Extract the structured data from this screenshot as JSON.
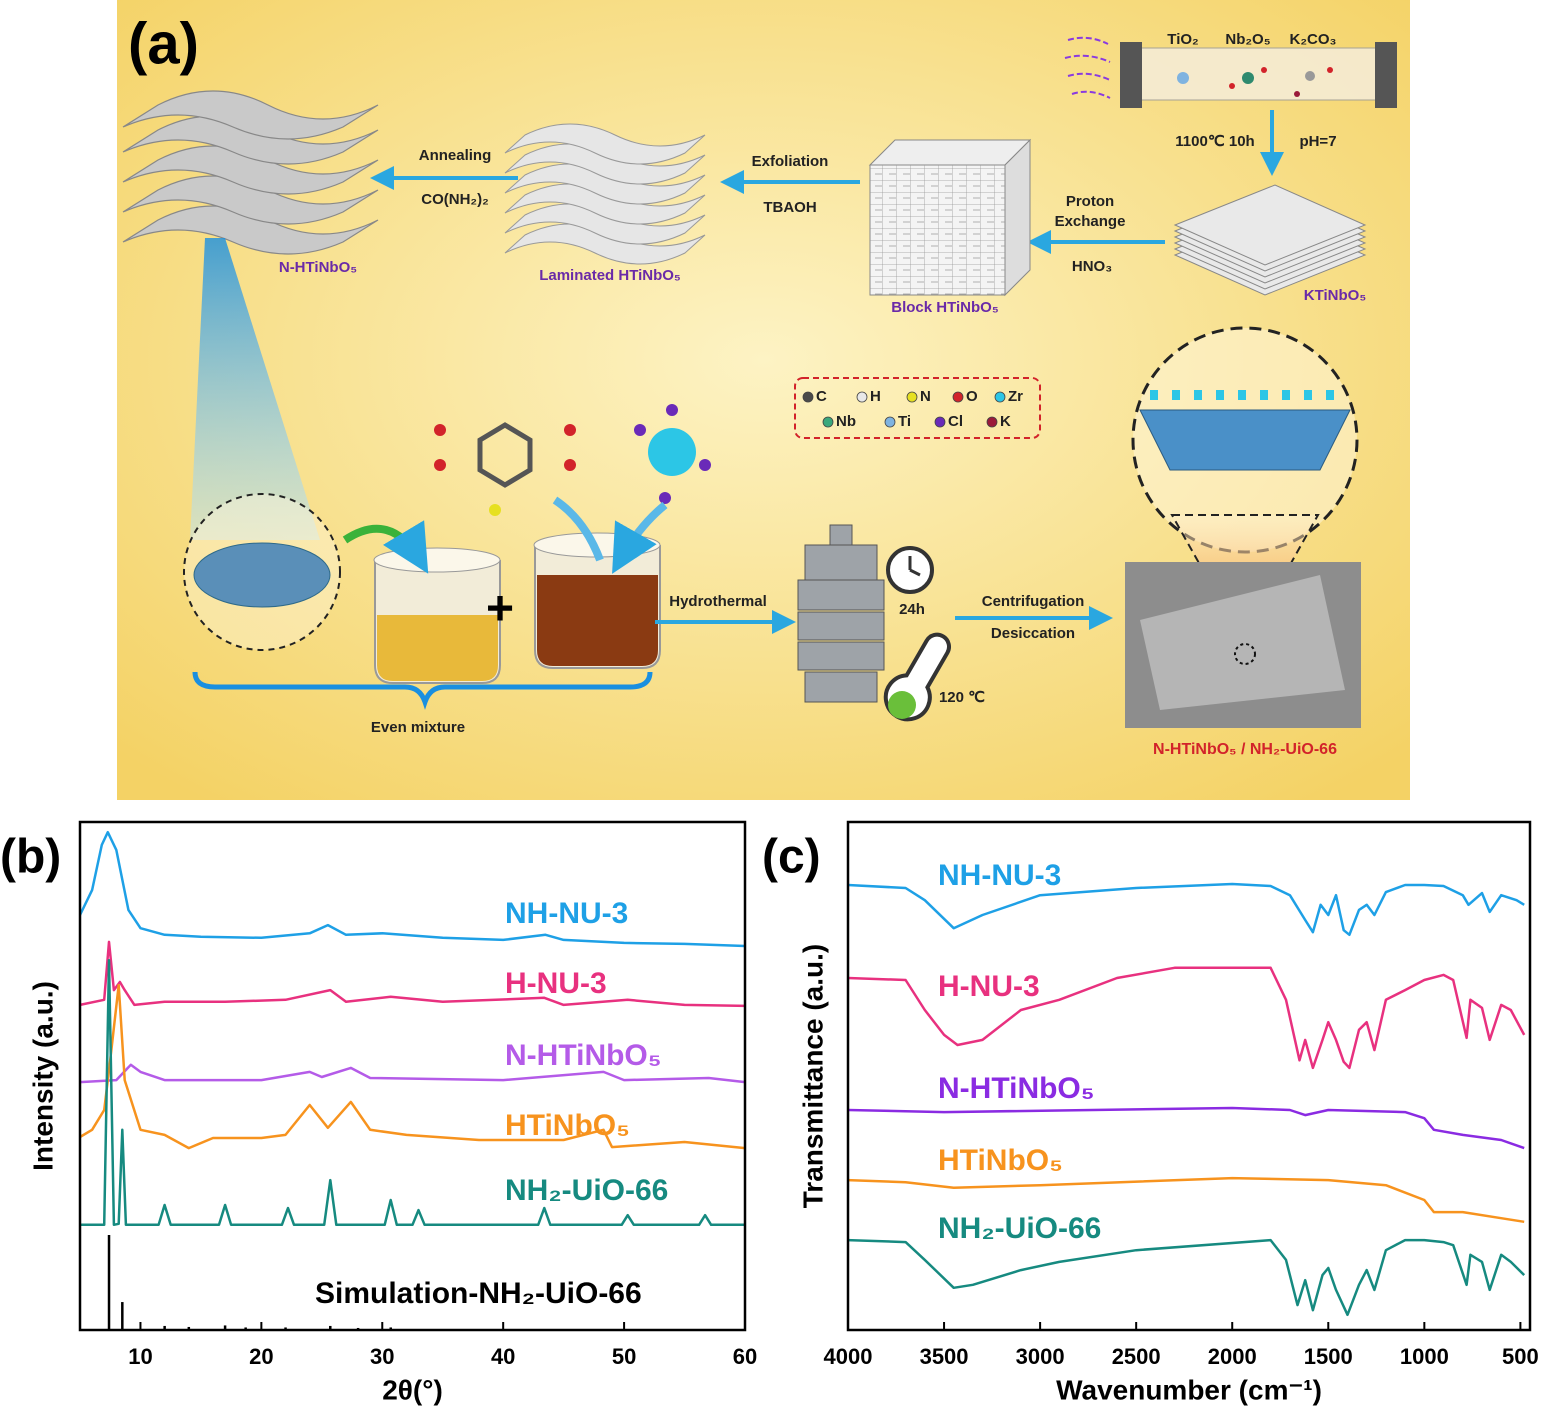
{
  "schematic": {
    "panel_label": "(a)",
    "precursors": [
      {
        "label": "TiO₂",
        "color": "#7fb3e0"
      },
      {
        "label": "Nb₂O₅",
        "color": "#2e8a6e"
      },
      {
        "label": "K₂CO₃",
        "color": "#a0202a"
      }
    ],
    "calcination": [
      "1100℃ 10h",
      "pH=7"
    ],
    "materials": [
      "KTiNbO₅",
      "Block HTiNbO₅",
      "Laminated HTiNbO₅",
      "N-HTiNbO₅"
    ],
    "steps": [
      {
        "lines": [
          "Proton",
          "Exchange"
        ],
        "reagent": "HNO₃"
      },
      {
        "lines": [
          "Exfoliation"
        ],
        "reagent": "TBAOH"
      },
      {
        "lines": [
          "Annealing"
        ],
        "reagent": "CO(NH₂)₂"
      }
    ],
    "legend": [
      {
        "label": "C",
        "color": "#4a4a4a"
      },
      {
        "label": "H",
        "color": "#e8e8e8"
      },
      {
        "label": "N",
        "color": "#e6e021"
      },
      {
        "label": "O",
        "color": "#d2232a"
      },
      {
        "label": "Zr",
        "color": "#2cc6e6"
      },
      {
        "label": "Nb",
        "color": "#3aa87c"
      },
      {
        "label": "Ti",
        "color": "#7fb3e0"
      },
      {
        "label": "Cl",
        "color": "#6a2ab8"
      },
      {
        "label": "K",
        "color": "#9a1a3a"
      }
    ],
    "synthesis": {
      "mixture": "Even mixture",
      "hydrothermal": "Hydrothermal",
      "time": "24h",
      "temperature": "120 ℃",
      "post": [
        "Centrifugation",
        "Desiccation"
      ],
      "product": "N-HTiNbO₅ / NH₂-UiO-66"
    }
  },
  "chart_data": [
    {
      "type": "line",
      "panel_label": "(b)",
      "x_label": "2θ(°)",
      "y_label": "Intensity (a.u.)",
      "xlim": [
        5,
        60
      ],
      "xticks": [
        10,
        20,
        30,
        40,
        50,
        60
      ],
      "ylim": [
        0,
        100
      ],
      "series": [
        {
          "name": "NH-NU-3",
          "color": "#1ea0e6",
          "x": [
            5,
            6,
            6.8,
            7.3,
            8,
            9,
            10,
            12,
            15,
            20,
            24,
            25.5,
            27,
            30,
            35,
            40,
            43.5,
            45,
            50,
            55,
            60
          ],
          "values": [
            81.7,
            86.6,
            95.5,
            98,
            94.5,
            82.7,
            79.1,
            77.8,
            77.4,
            77.2,
            78.1,
            79.7,
            77.8,
            78.1,
            77.2,
            76.8,
            77.8,
            76.8,
            76.2,
            76,
            75.6
          ]
        },
        {
          "name": "H-NU-3",
          "color": "#e8317f",
          "x": [
            5,
            7,
            7.4,
            7.8,
            8.3,
            8.7,
            9.5,
            12,
            17,
            22,
            25.7,
            27,
            30.7,
            35,
            43.4,
            45,
            50.3,
            55,
            60
          ],
          "values": [
            64,
            65,
            76.4,
            66.9,
            68.5,
            66.9,
            64,
            64.6,
            64.6,
            65,
            66.9,
            64.6,
            65.6,
            64.6,
            65.4,
            64,
            65,
            64,
            63.8
          ]
        },
        {
          "name": "N-HTiNbO₅",
          "color": "#b45be8",
          "x": [
            5,
            8,
            9.2,
            10,
            12,
            20,
            24,
            25,
            27.4,
            29,
            40,
            48.3,
            50,
            57,
            60
          ],
          "values": [
            48.8,
            49.2,
            52.2,
            50.8,
            49.2,
            49.2,
            50.8,
            49.8,
            51.6,
            49.6,
            49.2,
            50.8,
            49.2,
            49.6,
            48.8
          ]
        },
        {
          "name": "HTiNbO₅",
          "color": "#f7931e",
          "x": [
            5,
            6,
            7,
            7.5,
            8.2,
            8.7,
            10,
            12,
            14,
            16,
            20,
            22,
            24,
            25.5,
            27.4,
            29,
            32,
            38,
            45,
            48.3,
            49,
            55,
            60
          ],
          "values": [
            38,
            39.4,
            43.3,
            53.1,
            67.9,
            49.2,
            39.4,
            38.4,
            35.8,
            37.8,
            37.8,
            38.4,
            44.3,
            39.8,
            44.9,
            39.4,
            38.4,
            37.4,
            37.4,
            39.4,
            36,
            37,
            35.8
          ]
        },
        {
          "name": "NH₂-UiO-66",
          "color": "#168a80",
          "x": [
            5,
            7,
            7.4,
            7.8,
            8.2,
            8.5,
            8.8,
            11.5,
            12,
            12.5,
            16.5,
            17,
            17.5,
            21.7,
            22.2,
            22.7,
            25.2,
            25.7,
            26.2,
            30.2,
            30.7,
            31.2,
            32.5,
            33,
            33.5,
            42.9,
            43.4,
            43.9,
            49.8,
            50.3,
            50.8,
            56.2,
            56.7,
            57.2,
            60
          ],
          "values": [
            20.7,
            20.7,
            72.8,
            20.7,
            20.9,
            39.4,
            20.7,
            20.7,
            24.6,
            20.7,
            20.7,
            24.6,
            20.7,
            20.7,
            24,
            20.7,
            20.7,
            29.5,
            20.7,
            20.7,
            25.6,
            20.7,
            20.7,
            23.6,
            20.7,
            20.7,
            24,
            20.7,
            20.7,
            22.6,
            20.7,
            20.7,
            22.6,
            20.7,
            20.7
          ]
        },
        {
          "name": "Simulation-NH₂-UiO-66",
          "color": "#000000",
          "type": "stick",
          "x": [
            7.4,
            8.5,
            12,
            14,
            17,
            18.7,
            22,
            25.7,
            28,
            30.7
          ],
          "values": [
            18.7,
            5.5,
            0.8,
            0.6,
            0.9,
            0.5,
            0.5,
            0.8,
            0.4,
            0.5
          ]
        }
      ]
    },
    {
      "type": "line",
      "panel_label": "(c)",
      "x_label": "Wavenumber (cm⁻¹)",
      "y_label": "Transmittance (a.u.)",
      "xlim": [
        4000,
        450
      ],
      "xticks": [
        4000,
        3500,
        3000,
        2500,
        2000,
        1500,
        1000,
        500
      ],
      "ylim": [
        0,
        100
      ],
      "series": [
        {
          "name": "NH-NU-3",
          "color": "#1ea0e6",
          "x": [
            4000,
            3700,
            3600,
            3450,
            3300,
            3000,
            2500,
            2000,
            1800,
            1700,
            1620,
            1580,
            1540,
            1500,
            1460,
            1420,
            1390,
            1340,
            1300,
            1260,
            1200,
            1100,
            1000,
            900,
            800,
            770,
            700,
            660,
            600,
            520,
            480
          ],
          "values": [
            87.6,
            87,
            84.6,
            79.1,
            81.7,
            85.6,
            87,
            87.8,
            87.4,
            85.6,
            80.7,
            78.3,
            83.7,
            81.7,
            85.6,
            78.7,
            77.8,
            82.7,
            83.7,
            81.7,
            86.2,
            87.6,
            87.6,
            87.4,
            85.6,
            83.7,
            86,
            82.3,
            85.6,
            84.6,
            83.7
          ]
        },
        {
          "name": "H-NU-3",
          "color": "#e8317f",
          "x": [
            4000,
            3700,
            3600,
            3500,
            3430,
            3300,
            3100,
            2900,
            2600,
            2300,
            1800,
            1720,
            1650,
            1620,
            1580,
            1530,
            1500,
            1460,
            1420,
            1390,
            1340,
            1300,
            1260,
            1200,
            1100,
            1000,
            900,
            850,
            780,
            760,
            700,
            660,
            600,
            550,
            480
          ],
          "values": [
            69.3,
            68.9,
            63,
            58.1,
            56.1,
            57.1,
            63,
            65,
            69.3,
            71.3,
            71.3,
            65,
            53.1,
            57.1,
            51.6,
            57.1,
            60.6,
            57.1,
            52.8,
            51.6,
            59.1,
            60.6,
            55.1,
            65,
            66.9,
            68.9,
            69.9,
            68.9,
            57.5,
            65,
            63.4,
            57.1,
            64,
            63,
            58.1
          ]
        },
        {
          "name": "N-HTiNbO₅",
          "color": "#8a2be2",
          "x": [
            4000,
            3500,
            2000,
            1700,
            1620,
            1500,
            1100,
            1000,
            950,
            800,
            600,
            480
          ],
          "values": [
            43.3,
            42.9,
            43.7,
            43.3,
            42.3,
            43.3,
            42.9,
            41.7,
            39.4,
            38.4,
            37.4,
            35.8
          ]
        },
        {
          "name": "HTiNbO₅",
          "color": "#f7931e",
          "x": [
            4000,
            3700,
            3450,
            3000,
            2000,
            1500,
            1200,
            1000,
            950,
            800,
            600,
            480
          ],
          "values": [
            29.5,
            29.1,
            28,
            28.5,
            29.9,
            29.5,
            28.5,
            25.6,
            23.2,
            23.2,
            22,
            21.3
          ]
        },
        {
          "name": "NH₂-UiO-66",
          "color": "#168a80",
          "x": [
            4000,
            3700,
            3600,
            3450,
            3350,
            3100,
            2900,
            2500,
            1800,
            1720,
            1660,
            1620,
            1580,
            1530,
            1500,
            1460,
            1400,
            1340,
            1300,
            1260,
            1200,
            1100,
            1000,
            900,
            850,
            780,
            760,
            700,
            660,
            600,
            550,
            480
          ],
          "values": [
            17.7,
            17.3,
            13.8,
            8.3,
            8.9,
            11.8,
            13.4,
            15.7,
            17.7,
            13.8,
            4.9,
            9.8,
            3.9,
            10.8,
            12.2,
            7.9,
            3,
            8.9,
            11.8,
            7.9,
            15.7,
            17.7,
            17.7,
            17.3,
            16.7,
            8.9,
            14.8,
            13.4,
            7.9,
            14.8,
            13.4,
            10.8
          ]
        }
      ]
    }
  ]
}
